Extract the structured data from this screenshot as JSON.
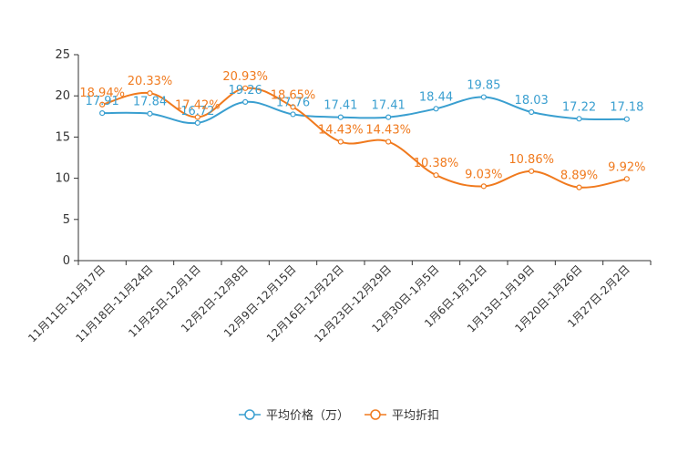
{
  "chart_data": {
    "type": "line",
    "title": "",
    "xlabel": "",
    "ylabel": "",
    "ylim": [
      0,
      25
    ],
    "yticks": [
      0,
      5,
      10,
      15,
      20,
      25
    ],
    "grid": false,
    "legend_position": "bottom",
    "categories": [
      "11月11日-11月17日",
      "11月18日-11月24日",
      "11月25日-12月1日",
      "12月2日-12月8日",
      "12月9日-12月15日",
      "12月16日-12月22日",
      "12月23日-12月29日",
      "12月30日-1月5日",
      "1月6日-1月12日",
      "1月13日-1月19日",
      "1月20日-1月26日",
      "1月27日-2月2日"
    ],
    "series": [
      {
        "name": "平均价格（万）",
        "color": "#3a9fd0",
        "values": [
          17.91,
          17.84,
          16.72,
          19.26,
          17.76,
          17.41,
          17.41,
          18.44,
          19.85,
          18.03,
          17.22,
          17.18
        ],
        "labels": [
          "17.91",
          "17.84",
          "16.72",
          "19.26",
          "17.76",
          "17.41",
          "17.41",
          "18.44",
          "19.85",
          "18.03",
          "17.22",
          "17.18"
        ]
      },
      {
        "name": "平均折扣",
        "color": "#f07a1e",
        "values": [
          18.94,
          20.33,
          17.42,
          20.93,
          18.65,
          14.43,
          14.43,
          10.38,
          9.03,
          10.86,
          8.89,
          9.92
        ],
        "labels": [
          "18.94%",
          "20.33%",
          "17.42%",
          "20.93%",
          "18.65%",
          "14.43%",
          "14.43%",
          "10.38%",
          "9.03%",
          "10.86%",
          "8.89%",
          "9.92%"
        ]
      }
    ]
  }
}
